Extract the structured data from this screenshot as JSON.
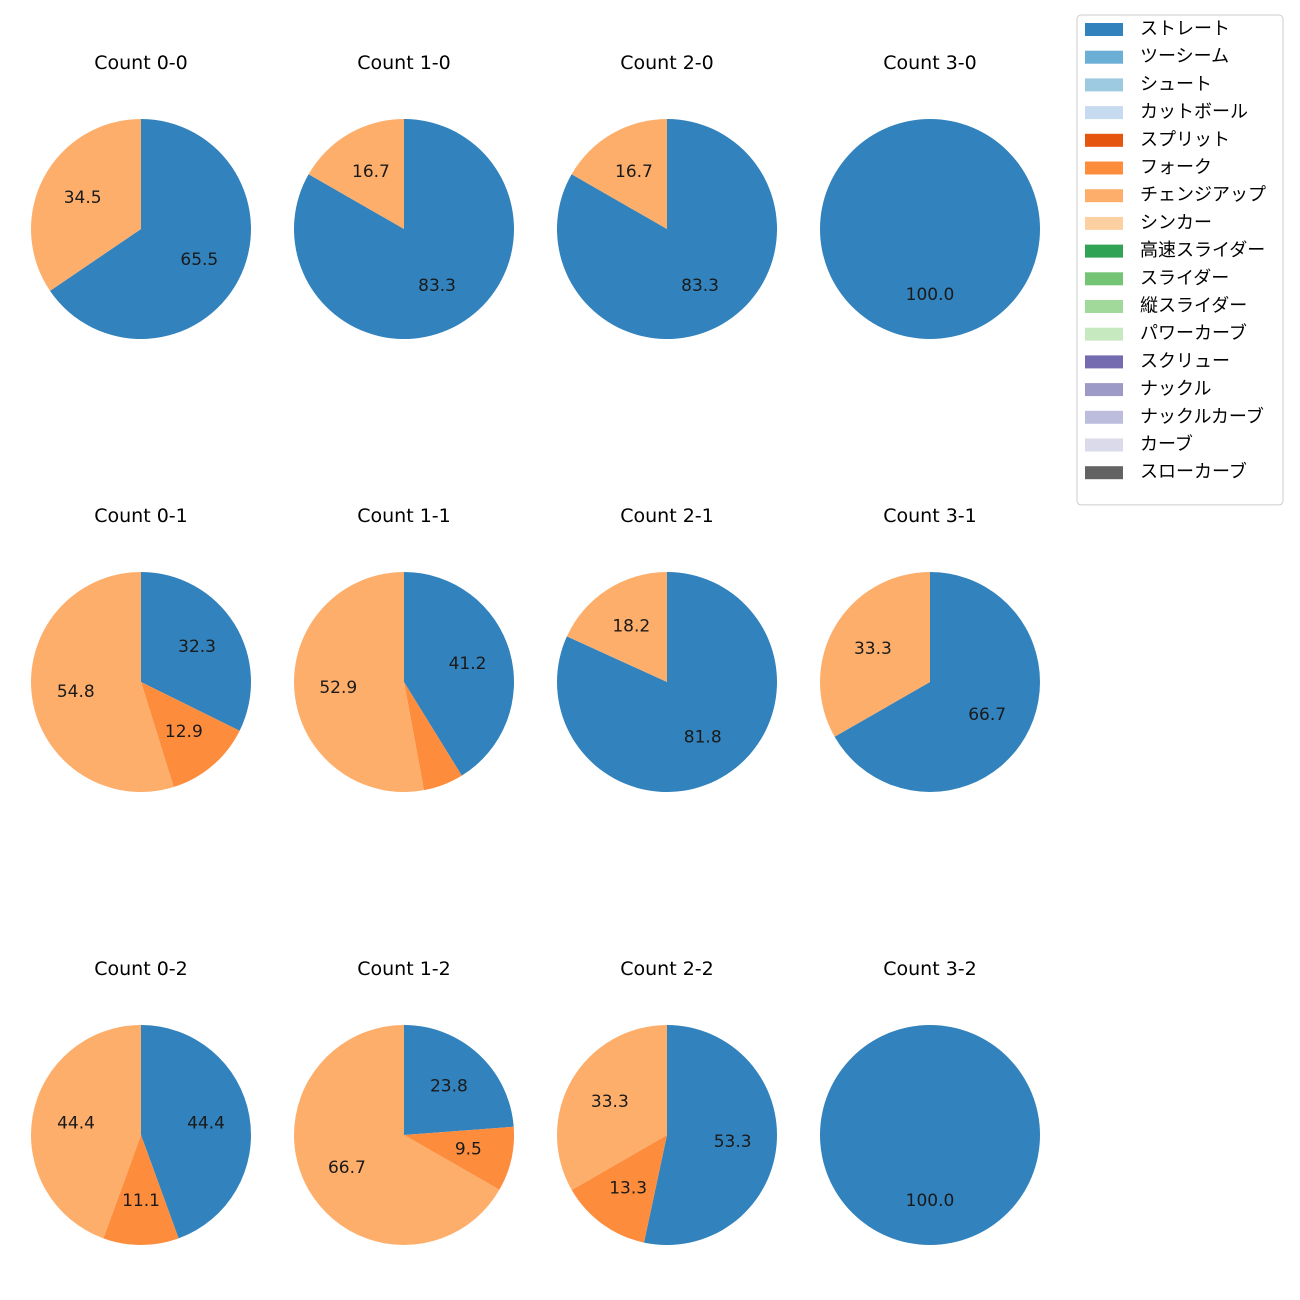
{
  "chart_data": {
    "type": "pie",
    "legend_position": "top-right",
    "categories": [
      {
        "name": "ストレート",
        "color": "#3182bd"
      },
      {
        "name": "ツーシーム",
        "color": "#6baed6"
      },
      {
        "name": "シュート",
        "color": "#9ecae1"
      },
      {
        "name": "カットボール",
        "color": "#c6dbef"
      },
      {
        "name": "スプリット",
        "color": "#e6550d"
      },
      {
        "name": "フォーク",
        "color": "#fd8d3c"
      },
      {
        "name": "チェンジアップ",
        "color": "#fdae6b"
      },
      {
        "name": "シンカー",
        "color": "#fdd0a2"
      },
      {
        "name": "高速スライダー",
        "color": "#31a354"
      },
      {
        "name": "スライダー",
        "color": "#74c476"
      },
      {
        "name": "縦スライダー",
        "color": "#a1d99b"
      },
      {
        "name": "パワーカーブ",
        "color": "#c7e9c0"
      },
      {
        "name": "スクリュー",
        "color": "#756bb1"
      },
      {
        "name": "ナックル",
        "color": "#9e9ac8"
      },
      {
        "name": "ナックルカーブ",
        "color": "#bcbddc"
      },
      {
        "name": "カーブ",
        "color": "#dadaeb"
      },
      {
        "name": "スローカーブ",
        "color": "#636363"
      }
    ],
    "charts": [
      {
        "title": "Count 0-0",
        "slices": [
          {
            "category": "ストレート",
            "value": 65.5,
            "label": "65.5"
          },
          {
            "category": "チェンジアップ",
            "value": 34.5,
            "label": "34.5"
          }
        ]
      },
      {
        "title": "Count 1-0",
        "slices": [
          {
            "category": "ストレート",
            "value": 83.3,
            "label": "83.3"
          },
          {
            "category": "チェンジアップ",
            "value": 16.7,
            "label": "16.7"
          }
        ]
      },
      {
        "title": "Count 2-0",
        "slices": [
          {
            "category": "ストレート",
            "value": 83.3,
            "label": "83.3"
          },
          {
            "category": "チェンジアップ",
            "value": 16.7,
            "label": "16.7"
          }
        ]
      },
      {
        "title": "Count 3-0",
        "slices": [
          {
            "category": "ストレート",
            "value": 100.0,
            "label": "100.0"
          }
        ]
      },
      {
        "title": "Count 0-1",
        "slices": [
          {
            "category": "ストレート",
            "value": 32.3,
            "label": "32.3"
          },
          {
            "category": "フォーク",
            "value": 12.9,
            "label": "12.9"
          },
          {
            "category": "チェンジアップ",
            "value": 54.8,
            "label": "54.8"
          }
        ]
      },
      {
        "title": "Count 1-1",
        "slices": [
          {
            "category": "ストレート",
            "value": 41.2,
            "label": "41.2"
          },
          {
            "category": "フォーク",
            "value": 5.9,
            "label": ""
          },
          {
            "category": "チェンジアップ",
            "value": 52.9,
            "label": "52.9"
          }
        ]
      },
      {
        "title": "Count 2-1",
        "slices": [
          {
            "category": "ストレート",
            "value": 81.8,
            "label": "81.8"
          },
          {
            "category": "チェンジアップ",
            "value": 18.2,
            "label": "18.2"
          }
        ]
      },
      {
        "title": "Count 3-1",
        "slices": [
          {
            "category": "ストレート",
            "value": 66.7,
            "label": "66.7"
          },
          {
            "category": "チェンジアップ",
            "value": 33.3,
            "label": "33.3"
          }
        ]
      },
      {
        "title": "Count 0-2",
        "slices": [
          {
            "category": "ストレート",
            "value": 44.4,
            "label": "44.4"
          },
          {
            "category": "フォーク",
            "value": 11.1,
            "label": "11.1"
          },
          {
            "category": "チェンジアップ",
            "value": 44.4,
            "label": "44.4"
          }
        ]
      },
      {
        "title": "Count 1-2",
        "slices": [
          {
            "category": "ストレート",
            "value": 23.8,
            "label": "23.8"
          },
          {
            "category": "フォーク",
            "value": 9.5,
            "label": "9.5"
          },
          {
            "category": "チェンジアップ",
            "value": 66.7,
            "label": "66.7"
          }
        ]
      },
      {
        "title": "Count 2-2",
        "slices": [
          {
            "category": "ストレート",
            "value": 53.3,
            "label": "53.3"
          },
          {
            "category": "フォーク",
            "value": 13.3,
            "label": "13.3"
          },
          {
            "category": "チェンジアップ",
            "value": 33.3,
            "label": "33.3"
          }
        ]
      },
      {
        "title": "Count 3-2",
        "slices": [
          {
            "category": "ストレート",
            "value": 100.0,
            "label": "100.0"
          }
        ]
      }
    ]
  }
}
